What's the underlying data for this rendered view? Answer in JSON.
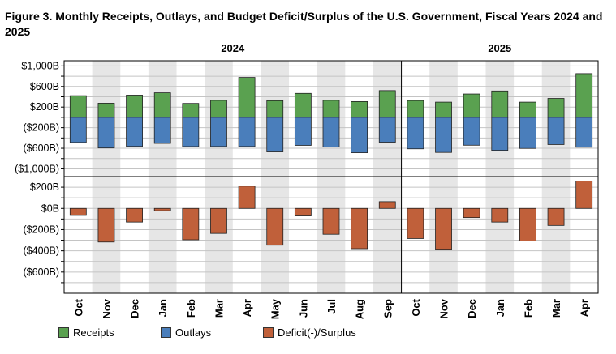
{
  "title": "Figure 3. Monthly Receipts, Outlays, and Budget Deficit/Surplus of the U.S. Government, Fiscal Years 2024 and 2025",
  "chart_data": {
    "type": "bar",
    "years": [
      "2024",
      "2025"
    ],
    "categories": [
      "Oct",
      "Nov",
      "Dec",
      "Jan",
      "Feb",
      "Mar",
      "Apr",
      "May",
      "Jun",
      "Jul",
      "Aug",
      "Sep",
      "Oct",
      "Nov",
      "Dec",
      "Jan",
      "Feb",
      "Mar",
      "Apr"
    ],
    "fiscal_year_split_index": 12,
    "shaded_months": [
      "Nov",
      "Jan",
      "Mar",
      "May",
      "Jul",
      "Sep"
    ],
    "series": [
      {
        "name": "Receipts",
        "color": "#5aa150",
        "values": [
          421,
          275,
          432,
          477,
          271,
          330,
          776,
          324,
          466,
          331,
          307,
          520,
          327,
          296,
          454,
          513,
          296,
          368,
          850
        ]
      },
      {
        "name": "Outlays",
        "color": "#4a7ebb",
        "values": [
          -487,
          -594,
          -564,
          -505,
          -567,
          -566,
          -566,
          -671,
          -544,
          -574,
          -687,
          -482,
          -611,
          -681,
          -541,
          -641,
          -603,
          -528,
          -580
        ]
      },
      {
        "name": "Deficit(-)/Surplus",
        "color": "#c0603a",
        "values": [
          -66,
          -317,
          -129,
          -22,
          -296,
          -236,
          210,
          -347,
          -71,
          -244,
          -380,
          64,
          -284,
          -385,
          -87,
          -129,
          -307,
          -161,
          258
        ]
      }
    ],
    "top_panel": {
      "series": [
        "Receipts",
        "Outlays"
      ],
      "ylim": [
        -1150,
        1100
      ],
      "ticks": [
        1000,
        600,
        200,
        -200,
        -600,
        -1000
      ],
      "tick_labels": [
        "$1,000B",
        "$600B",
        "$200B",
        "($200B)",
        "($600B)",
        "($1,000B)"
      ],
      "minor_ticks": [
        800,
        400,
        0,
        -400,
        -800
      ]
    },
    "bottom_panel": {
      "series": [
        "Deficit(-)/Surplus"
      ],
      "ylim": [
        -800,
        300
      ],
      "ticks": [
        200,
        0,
        -200,
        -400,
        -600
      ],
      "tick_labels": [
        "$200B",
        "$0B",
        "($200B)",
        "($400B)",
        "($600B)"
      ],
      "minor_ticks": [
        100,
        -100,
        -300,
        -500,
        -700
      ]
    },
    "grid": true,
    "legend_position": "bottom-left"
  }
}
